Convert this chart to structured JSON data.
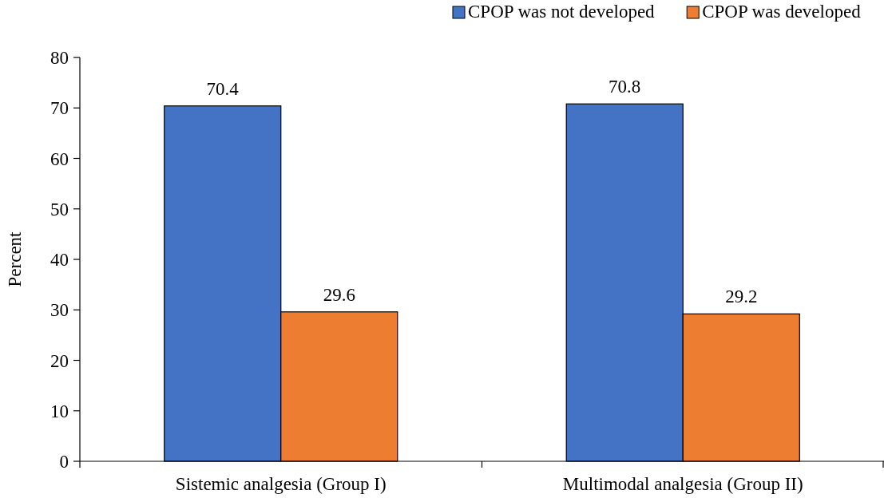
{
  "chart_data": {
    "type": "bar",
    "ylabel": "Percent",
    "categories": [
      "Sistemic analgesia (Group I)",
      "Multimodal analgesia (Group II)"
    ],
    "series": [
      {
        "name": "CPOP was not developed",
        "color": "#4472c4",
        "values": [
          70.4,
          70.8
        ]
      },
      {
        "name": "CPOP was developed",
        "color": "#ed7d31",
        "values": [
          29.6,
          29.2
        ]
      }
    ],
    "ylim": [
      0,
      80
    ],
    "yticks": [
      0,
      10,
      20,
      30,
      40,
      50,
      60,
      70,
      80
    ],
    "grid": false,
    "legend": "top right",
    "data_labels": true
  }
}
